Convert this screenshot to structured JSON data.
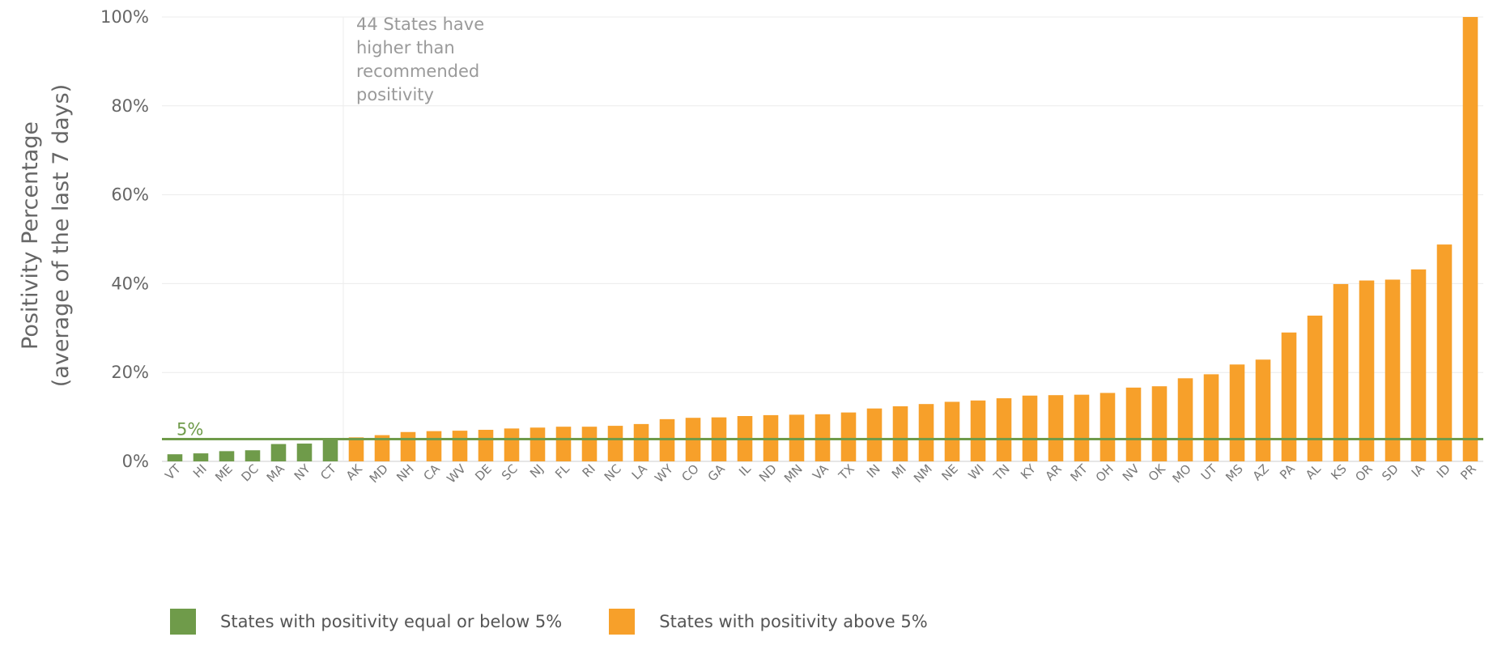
{
  "chart_data": {
    "type": "bar",
    "ylabel_lines": [
      "Positivity Percentage",
      "(average of the last 7 days)"
    ],
    "xlabel": "",
    "ylim": [
      0,
      100
    ],
    "y_ticks": [
      0,
      20,
      40,
      60,
      80,
      100
    ],
    "y_tick_labels": [
      "0%",
      "20%",
      "40%",
      "60%",
      "80%",
      "100%"
    ],
    "grid": true,
    "categories": [
      "VT",
      "HI",
      "ME",
      "DC",
      "MA",
      "NY",
      "CT",
      "AK",
      "MD",
      "NH",
      "CA",
      "WV",
      "DE",
      "SC",
      "NJ",
      "FL",
      "RI",
      "NC",
      "LA",
      "WY",
      "CO",
      "GA",
      "IL",
      "ND",
      "MN",
      "VA",
      "TX",
      "IN",
      "MI",
      "NM",
      "NE",
      "WI",
      "TN",
      "KY",
      "AR",
      "MT",
      "OH",
      "NV",
      "OK",
      "MO",
      "UT",
      "MS",
      "AZ",
      "PA",
      "AL",
      "KS",
      "OR",
      "SD",
      "IA",
      "ID",
      "PR"
    ],
    "values": [
      1.6,
      1.8,
      2.3,
      2.5,
      3.9,
      4.0,
      4.9,
      5.4,
      5.9,
      6.6,
      6.8,
      6.9,
      7.1,
      7.4,
      7.6,
      7.8,
      7.8,
      8.0,
      8.4,
      9.5,
      9.8,
      9.9,
      10.2,
      10.4,
      10.5,
      10.6,
      11.0,
      11.9,
      12.4,
      12.9,
      13.4,
      13.7,
      14.2,
      14.8,
      14.9,
      15.0,
      15.4,
      16.6,
      16.9,
      18.7,
      19.6,
      21.8,
      22.9,
      29.0,
      32.8,
      39.9,
      40.7,
      40.9,
      43.2,
      48.8,
      100
    ],
    "reference_line": {
      "value": 5,
      "label": "5%",
      "color": "#6f9b4a"
    },
    "divider_after_category": "CT",
    "annotation_lines": [
      "44 States have",
      "higher than",
      "recommended",
      "positivity"
    ],
    "colors": {
      "low": "#6f9b4a",
      "high": "#f7a02a",
      "grid": "#ececec",
      "axis": "#cccccc"
    },
    "legend": [
      {
        "label": "States with positivity equal or below 5%",
        "color": "#6f9b4a"
      },
      {
        "label": "States with positivity above 5%",
        "color": "#f7a02a"
      }
    ],
    "legend_placement": "bottom"
  }
}
